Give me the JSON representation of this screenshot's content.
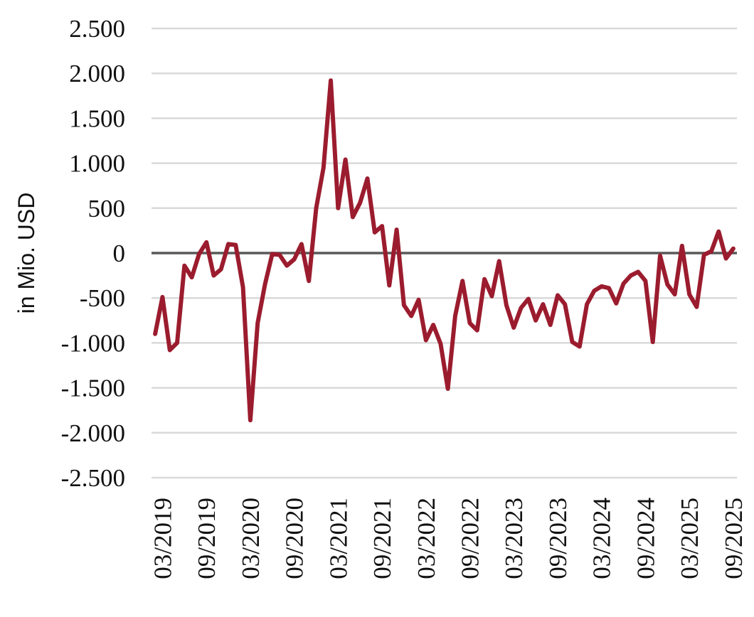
{
  "chart_data": {
    "type": "line",
    "title": "",
    "ylabel": "in Mio. USD",
    "xlabel": "",
    "ylim": [
      -2500,
      2500
    ],
    "yticks": [
      2500,
      2000,
      1500,
      1000,
      500,
      0,
      -500,
      -1000,
      -1500,
      -2000,
      -2500
    ],
    "ytick_labels": [
      "2.500",
      "2.000",
      "1.500",
      "1.000",
      "500",
      "0",
      "-500",
      "-1.000",
      "-1.500",
      "-2.000",
      "-2.500"
    ],
    "xtick_labels": [
      "03/2019",
      "09/2019",
      "03/2020",
      "09/2020",
      "03/2021",
      "09/2021",
      "03/2022",
      "09/2022",
      "03/2023",
      "09/2023",
      "03/2024",
      "09/2024",
      "03/2025",
      "09/2025"
    ],
    "x_start": "02/2019",
    "x_end": "09/2025",
    "grid": true,
    "colors": {
      "line": "#9b1c2e",
      "grid": "#d9d9d9",
      "zero_line": "#595959"
    },
    "series": [
      {
        "values": [
          -900,
          -490,
          -1080,
          -1000,
          -140,
          -270,
          -10,
          120,
          -250,
          -180,
          100,
          90,
          -380,
          -1860,
          -780,
          -350,
          -10,
          -20,
          -140,
          -70,
          100,
          -310,
          500,
          950,
          1920,
          500,
          1040,
          400,
          560,
          830,
          230,
          300,
          -360,
          260,
          -580,
          -700,
          -520,
          -970,
          -800,
          -1010,
          -1510,
          -700,
          -310,
          -780,
          -860,
          -290,
          -480,
          -90,
          -580,
          -830,
          -610,
          -510,
          -750,
          -570,
          -800,
          -470,
          -570,
          -990,
          -1040,
          -570,
          -420,
          -370,
          -390,
          -560,
          -340,
          -250,
          -210,
          -310,
          -990,
          -30,
          -350,
          -460,
          80,
          -460,
          -600,
          -20,
          20,
          240,
          -60,
          50
        ]
      }
    ]
  }
}
